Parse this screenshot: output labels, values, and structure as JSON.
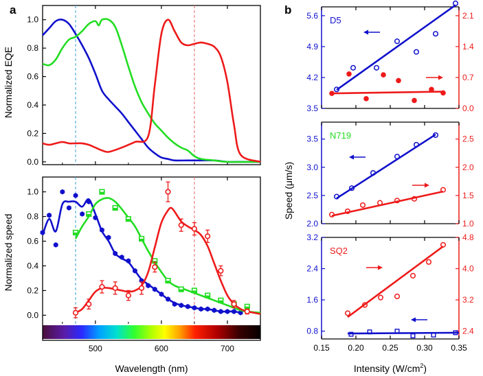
{
  "panel_labels": {
    "a": "a",
    "b": "b"
  },
  "colors": {
    "blue": "#1010cc",
    "green": "#22dd22",
    "red": "#ee1a1a",
    "axis": "#000000",
    "dash_blue": "#4aa8d8",
    "dash_red": "#e87070"
  },
  "chart_data": [
    {
      "id": "eqe",
      "type": "line",
      "title": "",
      "xlabel": "",
      "ylabel": "Normalized EQE",
      "xlim": [
        420,
        750
      ],
      "ylim": [
        -0.02,
        1.1
      ],
      "xticks": [
        500,
        600,
        700
      ],
      "yticks": [
        0.0,
        0.2,
        0.4,
        0.6,
        0.8,
        1.0
      ],
      "ytick_labels": [
        "0.0",
        "0.2",
        "0.4",
        "0.6",
        "0.8",
        "1.0"
      ],
      "reference_lines_x": [
        470,
        650
      ],
      "series": [
        {
          "color": "blue",
          "x": [
            420,
            430,
            440,
            450,
            460,
            470,
            480,
            490,
            500,
            510,
            520,
            530,
            540,
            550,
            560,
            570,
            580,
            590,
            600,
            610,
            620,
            640,
            660,
            680,
            700,
            720,
            750
          ],
          "y": [
            0.89,
            0.94,
            0.99,
            1.0,
            0.97,
            0.9,
            0.82,
            0.73,
            0.62,
            0.5,
            0.44,
            0.39,
            0.34,
            0.28,
            0.22,
            0.16,
            0.1,
            0.06,
            0.03,
            0.02,
            0.01,
            0.01,
            0.01,
            0.01,
            0.0,
            0.0,
            0.0
          ]
        },
        {
          "color": "green",
          "x": [
            420,
            430,
            440,
            450,
            460,
            470,
            480,
            490,
            500,
            505,
            510,
            520,
            530,
            540,
            550,
            560,
            570,
            580,
            590,
            600,
            610,
            620,
            630,
            640,
            650,
            660,
            680,
            700,
            750
          ],
          "y": [
            0.69,
            0.68,
            0.72,
            0.8,
            0.86,
            0.88,
            0.92,
            0.97,
            0.99,
            0.96,
            1.0,
            1.0,
            0.95,
            0.82,
            0.67,
            0.53,
            0.42,
            0.34,
            0.27,
            0.22,
            0.17,
            0.13,
            0.1,
            0.08,
            0.04,
            0.02,
            0.01,
            0.0,
            0.0
          ]
        },
        {
          "color": "red",
          "x": [
            420,
            430,
            440,
            450,
            460,
            470,
            480,
            490,
            500,
            510,
            520,
            540,
            560,
            580,
            590,
            600,
            610,
            620,
            630,
            640,
            650,
            660,
            670,
            680,
            690,
            700,
            710,
            720,
            750
          ],
          "y": [
            0.13,
            0.12,
            0.13,
            0.14,
            0.13,
            0.13,
            0.13,
            0.12,
            0.1,
            0.08,
            0.07,
            0.1,
            0.14,
            0.18,
            0.54,
            0.9,
            1.0,
            0.92,
            0.84,
            0.82,
            0.83,
            0.84,
            0.83,
            0.81,
            0.74,
            0.56,
            0.26,
            0.05,
            0.0
          ]
        }
      ]
    },
    {
      "id": "speed",
      "type": "scatter",
      "title": "",
      "xlabel": "Wavelength (nm)",
      "ylabel": "Normalized speed",
      "xlim": [
        420,
        750
      ],
      "ylim": [
        -0.07,
        1.12
      ],
      "xticks": [
        500,
        600,
        700
      ],
      "yticks": [
        0.0,
        0.2,
        0.4,
        0.6,
        0.8,
        1.0
      ],
      "ytick_labels": [
        "0.0",
        "0.2",
        "0.4",
        "0.6",
        "0.8",
        "1.0"
      ],
      "reference_lines_x": [
        470,
        650
      ],
      "spectrum_bar": true,
      "series": [
        {
          "color": "blue",
          "marker": "hexagon",
          "x": [
            420,
            430,
            440,
            450,
            460,
            470,
            480,
            490,
            500,
            510,
            520,
            530,
            540,
            550,
            560,
            570,
            580,
            590,
            600,
            610,
            620,
            630,
            640,
            650,
            660,
            670,
            680,
            690,
            700,
            710,
            720
          ],
          "y": [
            0.67,
            0.81,
            0.57,
            1.0,
            0.87,
            0.97,
            0.82,
            0.92,
            0.79,
            0.69,
            0.63,
            0.5,
            0.47,
            0.44,
            0.36,
            0.28,
            0.24,
            0.21,
            0.17,
            0.13,
            0.09,
            0.08,
            0.07,
            0.06,
            0.05,
            0.05,
            0.04,
            0.03,
            0.03,
            0.03,
            0.02
          ],
          "fit_x": [
            420,
            430,
            440,
            450,
            460,
            470,
            480,
            490,
            500,
            510,
            520,
            530,
            540,
            550,
            560,
            570,
            580,
            590,
            600,
            610,
            620,
            630,
            640,
            650,
            660,
            670,
            680,
            690,
            700,
            710,
            720
          ],
          "fit_y": [
            0.65,
            0.78,
            0.68,
            0.9,
            0.92,
            0.92,
            0.88,
            0.94,
            0.82,
            0.68,
            0.6,
            0.5,
            0.46,
            0.43,
            0.36,
            0.29,
            0.25,
            0.21,
            0.17,
            0.13,
            0.1,
            0.08,
            0.07,
            0.06,
            0.05,
            0.05,
            0.04,
            0.03,
            0.03,
            0.03,
            0.02
          ]
        },
        {
          "color": "green",
          "marker": "square",
          "x": [
            470,
            490,
            510,
            530,
            550,
            570,
            590,
            610,
            630,
            650,
            670,
            690,
            710,
            730
          ],
          "y": [
            0.67,
            0.82,
            1.0,
            0.87,
            0.78,
            0.62,
            0.44,
            0.28,
            0.21,
            0.2,
            0.16,
            0.12,
            0.09,
            0.07
          ],
          "fit_x": [
            470,
            480,
            490,
            500,
            510,
            520,
            530,
            540,
            550,
            560,
            570,
            580,
            590,
            600,
            610,
            620,
            630,
            640,
            650,
            660,
            670,
            680,
            690,
            700,
            710,
            720,
            730,
            750
          ],
          "fit_y": [
            0.62,
            0.72,
            0.8,
            0.9,
            0.94,
            0.95,
            0.92,
            0.86,
            0.79,
            0.72,
            0.62,
            0.52,
            0.43,
            0.35,
            0.28,
            0.24,
            0.22,
            0.2,
            0.18,
            0.16,
            0.14,
            0.12,
            0.1,
            0.08,
            0.06,
            0.04,
            0.03,
            0.02
          ]
        },
        {
          "color": "red",
          "marker": "circle",
          "x": [
            470,
            490,
            510,
            530,
            550,
            570,
            590,
            610,
            630,
            650,
            670,
            690,
            710,
            730
          ],
          "y": [
            0.02,
            0.09,
            0.23,
            0.22,
            0.16,
            0.22,
            0.39,
            1.0,
            0.73,
            0.7,
            0.64,
            0.36,
            0.09,
            0.03
          ],
          "err": [
            0.04,
            0.04,
            0.05,
            0.05,
            0.04,
            0.05,
            0.04,
            0.08,
            0.05,
            0.05,
            0.05,
            0.04,
            0.03,
            0.02
          ],
          "fit_x": [
            470,
            480,
            490,
            500,
            510,
            520,
            530,
            540,
            550,
            560,
            570,
            580,
            590,
            600,
            610,
            615,
            620,
            630,
            640,
            650,
            660,
            670,
            680,
            690,
            700,
            710,
            720,
            730,
            740,
            750
          ],
          "fit_y": [
            0.02,
            0.05,
            0.12,
            0.19,
            0.22,
            0.22,
            0.21,
            0.2,
            0.19,
            0.2,
            0.24,
            0.35,
            0.55,
            0.75,
            0.85,
            0.87,
            0.84,
            0.76,
            0.72,
            0.69,
            0.65,
            0.56,
            0.42,
            0.28,
            0.16,
            0.09,
            0.05,
            0.03,
            0.02,
            0.01
          ]
        }
      ]
    },
    {
      "id": "D5",
      "type": "scatter",
      "title": "D5",
      "title_color": "blue",
      "xlim": [
        0.15,
        0.35
      ],
      "ylim_left": [
        3.5,
        5.8
      ],
      "ylim_right": [
        0.0,
        2.3
      ],
      "yticks_left": [
        3.5,
        4.2,
        4.9,
        5.6
      ],
      "ytick_labels_left": [
        "3.5",
        "4.2",
        "4.9",
        "5.6"
      ],
      "yticks_right": [
        0.0,
        0.7,
        1.4,
        2.1
      ],
      "ytick_labels_right": [
        "0.0",
        "0.7",
        "1.4",
        "2.1"
      ],
      "left_axis_color": "blue",
      "right_axis_color": "red",
      "arrows": [
        {
          "color": "blue",
          "direction": "left"
        },
        {
          "color": "red",
          "direction": "right"
        }
      ],
      "series": [
        {
          "axis": "left",
          "color": "blue",
          "marker": "circle-open",
          "x": [
            0.172,
            0.196,
            0.23,
            0.26,
            0.288,
            0.316,
            0.345
          ],
          "y": [
            3.93,
            4.42,
            4.42,
            5.02,
            4.78,
            5.19,
            5.88
          ],
          "fit": [
            [
              0.172,
              3.92
            ],
            [
              0.345,
              5.84
            ]
          ]
        },
        {
          "axis": "right",
          "color": "red",
          "marker": "circle-filled",
          "x": [
            0.165,
            0.19,
            0.215,
            0.24,
            0.262,
            0.285,
            0.31,
            0.327
          ],
          "y": [
            0.34,
            0.78,
            0.22,
            0.76,
            0.63,
            0.18,
            0.43,
            0.35
          ],
          "fit": [
            [
              0.165,
              0.34
            ],
            [
              0.327,
              0.38
            ]
          ]
        }
      ]
    },
    {
      "id": "N719",
      "type": "scatter",
      "title": "N719",
      "title_color": "green",
      "xlim": [
        0.15,
        0.35
      ],
      "ylim_left": [
        2.0,
        3.8
      ],
      "ylim_right": [
        1.0,
        2.8
      ],
      "yticks_left": [
        2.0,
        2.5,
        3.0,
        3.5
      ],
      "ytick_labels_left": [
        "2.0",
        "2.5",
        "3.0",
        "3.5"
      ],
      "yticks_right": [
        1.0,
        1.5,
        2.0,
        2.5
      ],
      "ytick_labels_right": [
        "1.0",
        "1.5",
        "2.0",
        "2.5"
      ],
      "left_axis_color": "blue",
      "right_axis_color": "red",
      "arrows": [
        {
          "color": "blue",
          "direction": "left"
        },
        {
          "color": "red",
          "direction": "right"
        }
      ],
      "series": [
        {
          "axis": "left",
          "color": "blue",
          "marker": "circle-open",
          "x": [
            0.172,
            0.194,
            0.225,
            0.26,
            0.288,
            0.316
          ],
          "y": [
            2.48,
            2.63,
            2.9,
            3.19,
            3.4,
            3.57
          ],
          "fit": [
            [
              0.172,
              2.45
            ],
            [
              0.316,
              3.58
            ]
          ]
        },
        {
          "axis": "right",
          "color": "red",
          "marker": "circle-open",
          "x": [
            0.165,
            0.188,
            0.21,
            0.235,
            0.26,
            0.285,
            0.327
          ],
          "y": [
            1.16,
            1.22,
            1.33,
            1.37,
            1.41,
            1.44,
            1.6
          ],
          "fit": [
            [
              0.165,
              1.14
            ],
            [
              0.327,
              1.57
            ]
          ]
        }
      ]
    },
    {
      "id": "SQ2",
      "type": "scatter",
      "title": "SQ2",
      "title_color": "red",
      "xlim": [
        0.15,
        0.35
      ],
      "ylim_left": [
        0.6,
        3.2
      ],
      "ylim_right": [
        2.2,
        4.8
      ],
      "yticks_left": [
        0.8,
        1.6,
        2.4,
        3.2
      ],
      "ytick_labels_left": [
        "0.8",
        "1.6",
        "2.4",
        "3.2"
      ],
      "yticks_right": [
        2.4,
        3.2,
        4.0,
        4.8
      ],
      "ytick_labels_right": [
        "2.4",
        "3.2",
        "4.0",
        "4.8"
      ],
      "xticks": [
        0.15,
        0.2,
        0.25,
        0.3,
        0.35
      ],
      "xtick_labels": [
        "0.15",
        "0.20",
        "0.25",
        "0.30",
        "0.35"
      ],
      "xlabel_prefix": "Intensity (W/cm",
      "xlabel_sup": "2",
      "xlabel_suffix": ")",
      "left_axis_color": "blue",
      "right_axis_color": "red",
      "arrows": [
        {
          "color": "red",
          "direction": "right"
        },
        {
          "color": "blue",
          "direction": "left"
        }
      ],
      "series": [
        {
          "axis": "right",
          "color": "red",
          "marker": "circle-open",
          "x": [
            0.188,
            0.213,
            0.236,
            0.26,
            0.283,
            0.306,
            0.327
          ],
          "y": [
            2.86,
            3.07,
            3.26,
            3.29,
            3.82,
            4.17,
            4.61
          ],
          "fit": [
            [
              0.188,
              2.76
            ],
            [
              0.327,
              4.57
            ]
          ]
        },
        {
          "axis": "left",
          "color": "blue",
          "marker": "square-open",
          "x": [
            0.193,
            0.22,
            0.26,
            0.283,
            0.313,
            0.345
          ],
          "y": [
            0.72,
            0.78,
            0.8,
            0.68,
            0.7,
            0.76
          ],
          "fit": [
            [
              0.188,
              0.74
            ],
            [
              0.35,
              0.76
            ]
          ]
        }
      ]
    }
  ],
  "shared_labels": {
    "b_ylabel": "Speed (μm/s)"
  }
}
